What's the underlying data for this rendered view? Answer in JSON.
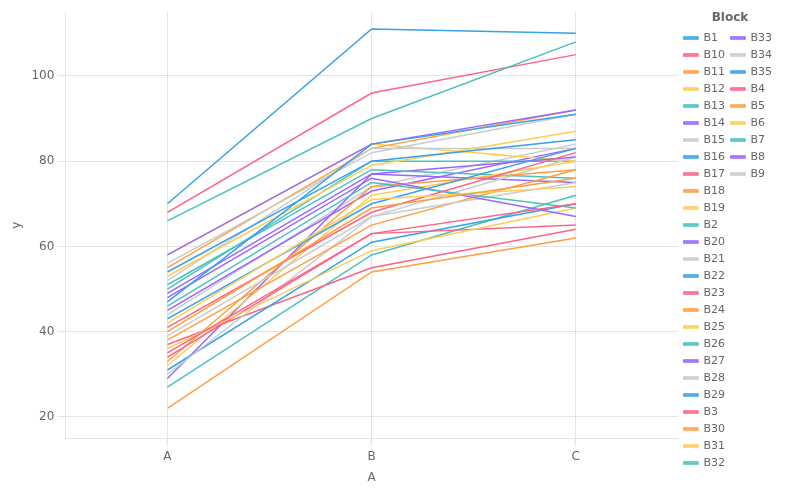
{
  "chart_data": {
    "type": "line",
    "x_label": "A",
    "y_label": "y",
    "legend_title": "Block",
    "categories": [
      "A",
      "B",
      "C"
    ],
    "series": [
      {
        "name": "B1",
        "values": [
          47,
          84,
          91
        ]
      },
      {
        "name": "B10",
        "values": [
          35,
          63,
          70
        ]
      },
      {
        "name": "B11",
        "values": [
          40,
          69,
          76
        ]
      },
      {
        "name": "B12",
        "values": [
          42,
          71,
          74
        ]
      },
      {
        "name": "B13",
        "values": [
          46,
          75,
          69
        ]
      },
      {
        "name": "B14",
        "values": [
          48,
          76,
          67
        ]
      },
      {
        "name": "B15",
        "values": [
          39,
          67,
          75
        ]
      },
      {
        "name": "B16",
        "values": [
          43,
          70,
          83
        ]
      },
      {
        "name": "B17",
        "values": [
          41,
          68,
          82
        ]
      },
      {
        "name": "B18",
        "values": [
          38,
          65,
          78
        ]
      },
      {
        "name": "B19",
        "values": [
          36,
          59,
          69
        ]
      },
      {
        "name": "B2",
        "values": [
          66,
          90,
          108
        ]
      },
      {
        "name": "B20",
        "values": [
          58,
          84,
          92
        ]
      },
      {
        "name": "B21",
        "values": [
          56,
          82,
          91
        ]
      },
      {
        "name": "B22",
        "values": [
          54,
          80,
          85
        ]
      },
      {
        "name": "B23",
        "values": [
          34,
          63,
          65
        ]
      },
      {
        "name": "B24",
        "values": [
          33,
          74,
          78
        ]
      },
      {
        "name": "B25",
        "values": [
          32,
          72,
          80
        ]
      },
      {
        "name": "B26",
        "values": [
          51,
          78,
          76
        ]
      },
      {
        "name": "B27",
        "values": [
          49,
          77,
          81
        ]
      },
      {
        "name": "B28",
        "values": [
          30,
          67,
          81
        ]
      },
      {
        "name": "B29",
        "values": [
          31,
          61,
          70
        ]
      },
      {
        "name": "B3",
        "values": [
          37,
          55,
          64
        ]
      },
      {
        "name": "B30",
        "values": [
          22,
          54,
          62
        ]
      },
      {
        "name": "B31",
        "values": [
          53,
          79,
          87
        ]
      },
      {
        "name": "B32",
        "values": [
          27,
          58,
          72
        ]
      },
      {
        "name": "B33",
        "values": [
          29,
          77,
          75
        ]
      },
      {
        "name": "B34",
        "values": [
          52,
          83,
          83
        ]
      },
      {
        "name": "B35",
        "values": [
          70,
          111,
          110
        ]
      },
      {
        "name": "B4",
        "values": [
          68,
          96,
          105
        ]
      },
      {
        "name": "B5",
        "values": [
          55,
          83,
          92
        ]
      },
      {
        "name": "B6",
        "values": [
          58,
          84,
          80
        ]
      },
      {
        "name": "B7",
        "values": [
          50,
          80,
          80
        ]
      },
      {
        "name": "B8",
        "values": [
          45,
          73,
          83
        ]
      },
      {
        "name": "B9",
        "values": [
          44,
          74,
          84
        ]
      }
    ],
    "ylim": [
      15,
      115
    ],
    "yticks": [
      20,
      40,
      60,
      80,
      100
    ],
    "grid": true,
    "legend": "right"
  }
}
